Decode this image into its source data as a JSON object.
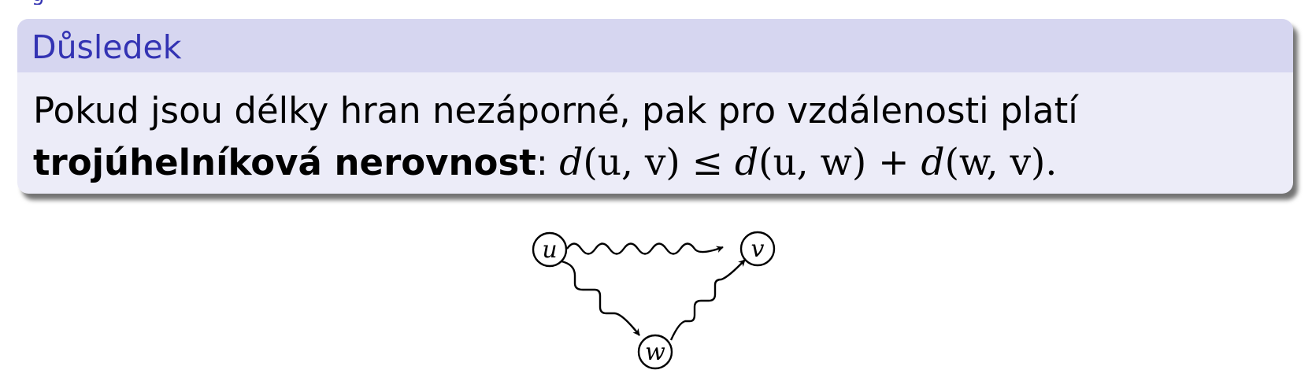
{
  "block": {
    "title": "Důsledek",
    "line1": "Pokud jsou délky hran nezáporné, pak pro vzdálenosti platí",
    "bold_term": "trojúhelníková nerovnost",
    "colon": ":",
    "math": {
      "lhs_fn": "d",
      "lhs_args": "(u, v)",
      "relation": "≤",
      "rhs1_fn": "d",
      "rhs1_args": "(u, w)",
      "plus": "+",
      "rhs2_fn": "d",
      "rhs2_args": "(w, v)",
      "period": "."
    }
  },
  "diagram": {
    "nodes": [
      {
        "id": "u",
        "label": "u"
      },
      {
        "id": "v",
        "label": "v"
      },
      {
        "id": "w",
        "label": "w"
      }
    ],
    "edges": [
      {
        "from": "u",
        "to": "v",
        "style": "wavy"
      },
      {
        "from": "u",
        "to": "w",
        "style": "zigzag"
      },
      {
        "from": "w",
        "to": "v",
        "style": "zigzag"
      }
    ]
  },
  "colors": {
    "title": "#3333b3",
    "header_bg": "#d6d6f0",
    "body_bg": "#ececf8"
  }
}
